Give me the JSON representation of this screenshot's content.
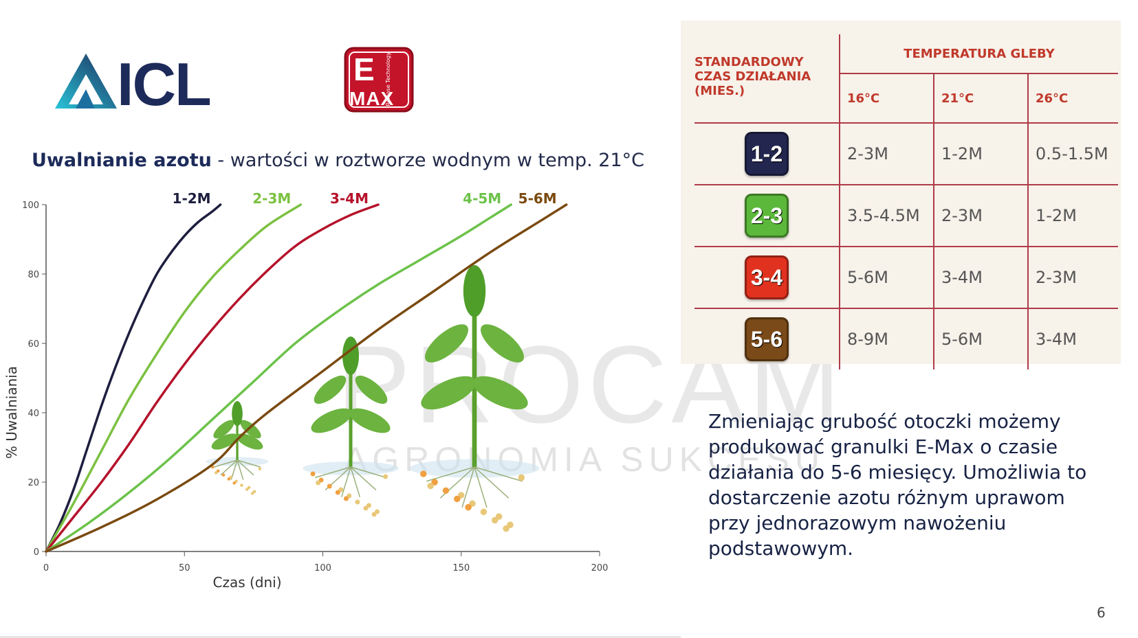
{
  "logos": {
    "icl": "ICL",
    "emax_letter": "E",
    "emax_word": "MAX",
    "emax_sub": "Release Technology"
  },
  "heading": {
    "bold": "Uwalnianie azotu",
    "rest": " - wartości w roztworze wodnym w temp. 21°C"
  },
  "chart_data": {
    "type": "line",
    "title": "Uwalnianie azotu - wartości w roztworze wodnym w temp. 21°C",
    "xlabel": "Czas (dni)",
    "ylabel": "% Uwalniania",
    "xlim": [
      0,
      200
    ],
    "ylim": [
      0,
      100
    ],
    "x_ticks": [
      0,
      50,
      100,
      150,
      200
    ],
    "y_ticks": [
      0,
      20,
      40,
      60,
      80,
      100
    ],
    "grid": false,
    "series": [
      {
        "name": "1-2M",
        "color": "#1e1e3f",
        "x": [
          0,
          5,
          10,
          15,
          20,
          25,
          30,
          35,
          40,
          45,
          50,
          55,
          60,
          63
        ],
        "y": [
          0,
          8,
          18,
          30,
          42,
          53,
          63,
          72,
          80,
          86,
          91,
          95,
          98,
          100
        ]
      },
      {
        "name": "2-3M",
        "color": "#7cc142",
        "x": [
          0,
          10,
          20,
          30,
          40,
          50,
          60,
          70,
          80,
          92
        ],
        "y": [
          0,
          14,
          29,
          44,
          57,
          69,
          79,
          87,
          94,
          100
        ]
      },
      {
        "name": "3-4M",
        "color": "#b5122b",
        "x": [
          0,
          10,
          20,
          30,
          40,
          50,
          60,
          70,
          80,
          90,
          100,
          110,
          120
        ],
        "y": [
          0,
          10,
          20,
          31,
          43,
          54,
          64,
          73,
          81,
          88,
          93,
          97,
          100
        ]
      },
      {
        "name": "4-5M",
        "color": "#6cc24a",
        "x": [
          0,
          15,
          30,
          45,
          60,
          75,
          90,
          105,
          120,
          135,
          150,
          160,
          168
        ],
        "y": [
          0,
          8,
          17,
          27,
          38,
          49,
          60,
          69,
          77,
          84,
          91,
          96,
          100
        ]
      },
      {
        "name": "5-6M",
        "color": "#7a4a10",
        "x": [
          0,
          20,
          40,
          60,
          70,
          80,
          100,
          120,
          140,
          160,
          180,
          188
        ],
        "y": [
          0,
          7,
          15,
          25,
          33,
          40,
          52,
          64,
          75,
          86,
          96,
          100
        ]
      }
    ]
  },
  "table": {
    "header_left": [
      "STANDARDOWY",
      "CZAS DZIAŁANIA",
      "(MIES.)"
    ],
    "header_group": "TEMPERATURA GLEBY",
    "temps": [
      "16°C",
      "21°C",
      "26°C"
    ],
    "rows": [
      {
        "badge": "1-2",
        "color": "#23274f",
        "values": [
          "2-3M",
          "1-2M",
          "0.5-1.5M"
        ]
      },
      {
        "badge": "2-3",
        "color": "#5cb83a",
        "values": [
          "3.5-4.5M",
          "2-3M",
          "1-2M"
        ]
      },
      {
        "badge": "3-4",
        "color": "#e0321f",
        "values": [
          "5-6M",
          "3-4M",
          "2-3M"
        ]
      },
      {
        "badge": "5-6",
        "color": "#7a4a18",
        "values": [
          "8-9M",
          "5-6M",
          "3-4M"
        ]
      }
    ]
  },
  "description": "Zmieniając grubość otoczki możemy produkować granulki E-Max o czasie działania do 5-6 miesięcy. Umożliwia to dostarczenie azotu różnym uprawom przy jednorazowym nawożeniu podstawowym.",
  "watermark": {
    "main": "PROCAM",
    "sub": "AGRONOMIA SUKCESU"
  },
  "page_number": "6"
}
